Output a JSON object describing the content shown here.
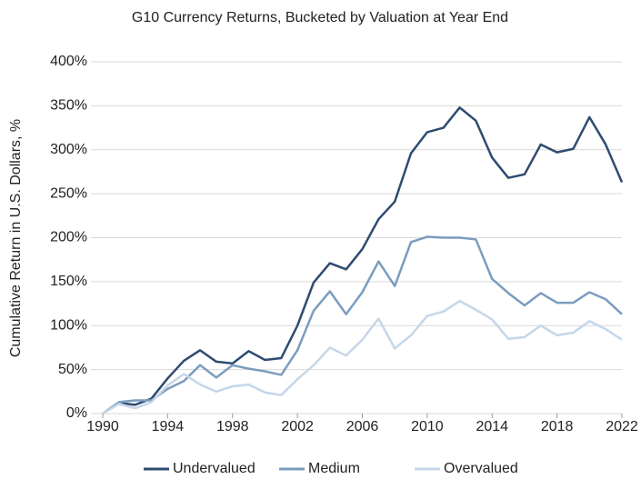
{
  "chart_data": {
    "type": "line",
    "title": "G10 Currency Returns, Bucketed by Valuation at Year End",
    "y_label": "Cumulative Return in U.S. Dollars, %",
    "x": [
      1990,
      1991,
      1992,
      1993,
      1994,
      1995,
      1996,
      1997,
      1998,
      1999,
      2000,
      2001,
      2002,
      2003,
      2004,
      2005,
      2006,
      2007,
      2008,
      2009,
      2010,
      2011,
      2012,
      2013,
      2014,
      2015,
      2016,
      2017,
      2018,
      2019,
      2020,
      2021,
      2022
    ],
    "series": [
      {
        "name": "Undervalued",
        "color": "#2f4b70",
        "values": [
          0,
          12,
          10,
          17,
          40,
          60,
          72,
          59,
          57,
          71,
          61,
          63,
          100,
          149,
          171,
          164,
          187,
          221,
          241,
          296,
          320,
          325,
          348,
          333,
          291,
          268,
          272,
          306,
          297,
          301,
          337,
          306,
          263
        ]
      },
      {
        "name": "Medium",
        "color": "#7b9cbe",
        "values": [
          0,
          13,
          15,
          15,
          28,
          37,
          55,
          41,
          55,
          51,
          48,
          44,
          72,
          117,
          139,
          113,
          138,
          173,
          145,
          195,
          201,
          200,
          200,
          198,
          153,
          137,
          123,
          137,
          126,
          126,
          138,
          130,
          113
        ]
      },
      {
        "name": "Overvalued",
        "color": "#c5d6e9",
        "values": [
          0,
          11,
          6,
          13,
          32,
          45,
          33,
          25,
          31,
          33,
          24,
          21,
          39,
          55,
          75,
          66,
          84,
          108,
          74,
          89,
          111,
          116,
          128,
          118,
          107,
          85,
          87,
          100,
          89,
          92,
          105,
          96,
          84
        ]
      }
    ],
    "xlim": [
      1990,
      2022
    ],
    "xticks": [
      1990,
      1994,
      1998,
      2002,
      2006,
      2010,
      2014,
      2018,
      2022
    ],
    "ylim": [
      0,
      400
    ],
    "yticks": [
      {
        "value": 0,
        "label": "0%"
      },
      {
        "value": 50,
        "label": "50%"
      },
      {
        "value": 100,
        "label": "100%"
      },
      {
        "value": 150,
        "label": "150%"
      },
      {
        "value": 200,
        "label": "200%"
      },
      {
        "value": 250,
        "label": "250%"
      },
      {
        "value": 300,
        "label": "300%"
      },
      {
        "value": 350,
        "label": "350%"
      },
      {
        "value": 400,
        "label": "400%"
      }
    ],
    "grid": true,
    "legend": "bottom"
  }
}
